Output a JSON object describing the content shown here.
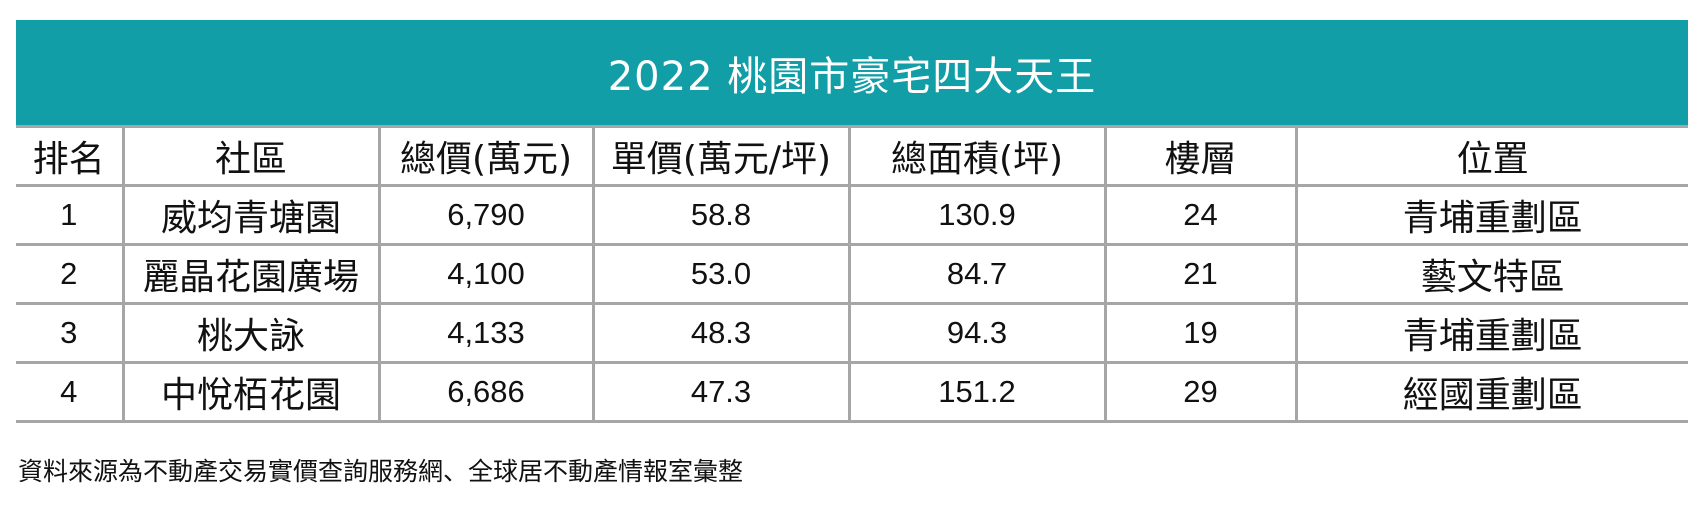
{
  "title": "2022 桃園市豪宅四大天王",
  "headers": [
    "排名",
    "社區",
    "總價(萬元)",
    "單價(萬元/坪)",
    "總面積(坪)",
    "樓層",
    "位置"
  ],
  "rows": [
    [
      "1",
      "威均青塘園",
      "6,790",
      "58.8",
      "130.9",
      "24",
      "青埔重劃區"
    ],
    [
      "2",
      "麗晶花園廣場",
      "4,100",
      "53.0",
      "84.7",
      "21",
      "藝文特區"
    ],
    [
      "3",
      "桃大詠",
      "4,133",
      "48.3",
      "94.3",
      "19",
      "青埔重劃區"
    ],
    [
      "4",
      "中悅栢花園",
      "6,686",
      "47.3",
      "151.2",
      "29",
      "經國重劃區"
    ]
  ],
  "source_note": "資料來源為不動產交易實價查詢服務網、全球居不動產情報室彙整",
  "colors": {
    "title_background": "#129ea7",
    "title_text": "#ffffff",
    "grid_line": "#a6a6a6"
  }
}
